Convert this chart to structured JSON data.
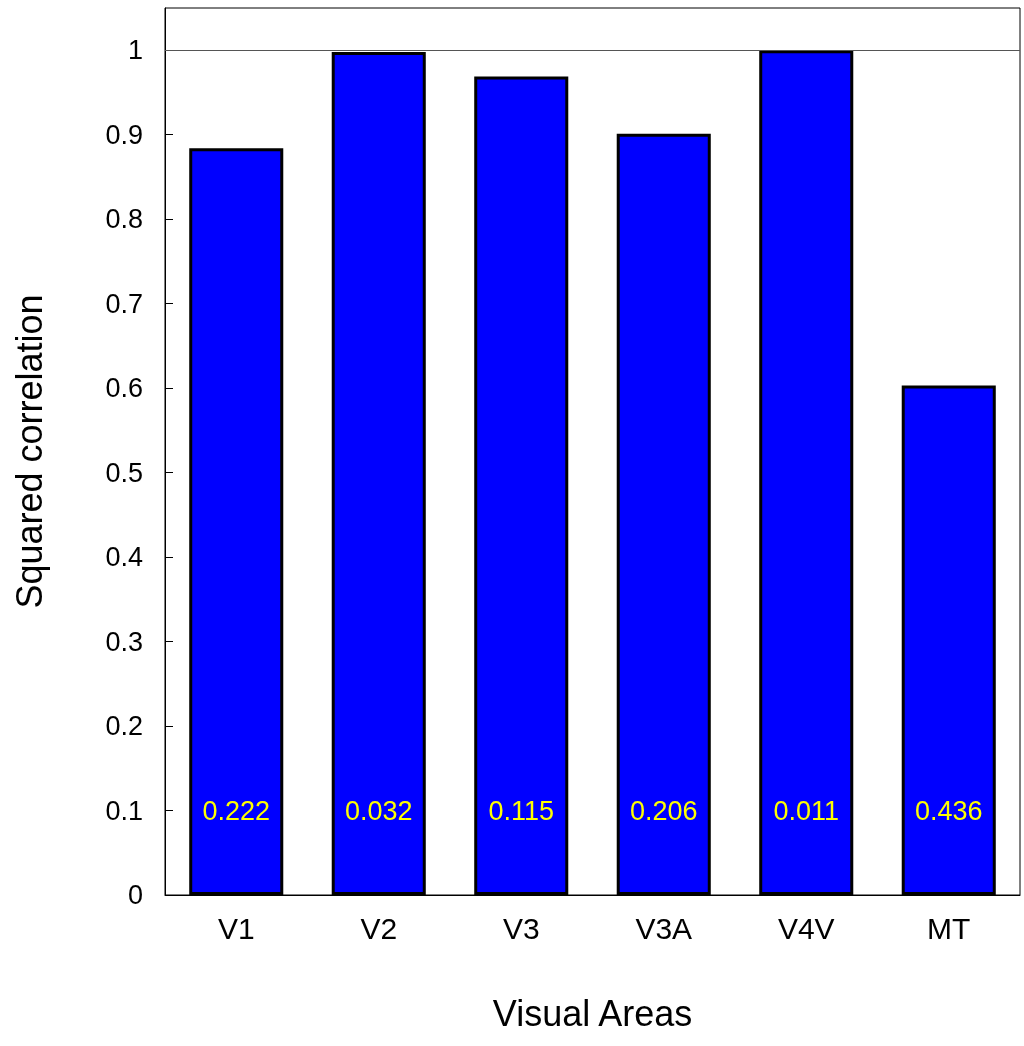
{
  "chart_data": {
    "type": "bar",
    "xlabel": "Visual Areas",
    "ylabel": "Squared correlation",
    "categories": [
      "V1",
      "V2",
      "V3",
      "V3A",
      "V4V",
      "MT"
    ],
    "values": [
      0.884,
      0.998,
      0.969,
      0.901,
      1.0,
      0.603
    ],
    "color": "#0000ff",
    "ylim": [
      0,
      1.05
    ],
    "yticks": [
      0,
      0.1,
      0.2,
      0.3,
      0.4,
      0.5,
      0.6,
      0.7,
      0.8,
      0.9,
      1
    ],
    "ref_lines": [
      {
        "axis": "y",
        "value": 1,
        "color": "#555555"
      }
    ],
    "annotations": [
      "0.222",
      "0.032",
      "0.115",
      "0.206",
      "0.011",
      "0.436"
    ]
  }
}
